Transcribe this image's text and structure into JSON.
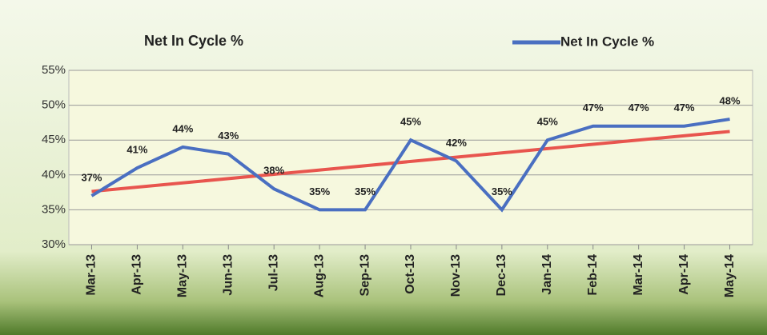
{
  "chart_data": {
    "type": "line",
    "title": "Net In Cycle %",
    "categories": [
      "Mar-13",
      "Apr-13",
      "May-13",
      "Jun-13",
      "Jul-13",
      "Aug-13",
      "Sep-13",
      "Oct-13",
      "Nov-13",
      "Dec-13",
      "Jan-14",
      "Feb-14",
      "Mar-14",
      "Apr-14",
      "May-14"
    ],
    "series": [
      {
        "name": "Net In Cycle %",
        "color": "#4a6fc1",
        "values": [
          37,
          41,
          44,
          43,
          38,
          35,
          35,
          45,
          42,
          35,
          45,
          47,
          47,
          47,
          48
        ],
        "value_labels": [
          "37%",
          "41%",
          "44%",
          "43%",
          "38%",
          "35%",
          "35%",
          "45%",
          "42%",
          "35%",
          "45%",
          "47%",
          "47%",
          "47%",
          "48%"
        ]
      }
    ],
    "trendline": {
      "color": "#e8554e"
    },
    "ylim": [
      30,
      55
    ],
    "yticks": [
      {
        "value": 30,
        "label": "30%"
      },
      {
        "value": 35,
        "label": "35%"
      },
      {
        "value": 40,
        "label": "40%"
      },
      {
        "value": 45,
        "label": "45%"
      },
      {
        "value": 50,
        "label": "50%"
      },
      {
        "value": 55,
        "label": "55%"
      }
    ],
    "grid": true,
    "legend": "top-right"
  }
}
